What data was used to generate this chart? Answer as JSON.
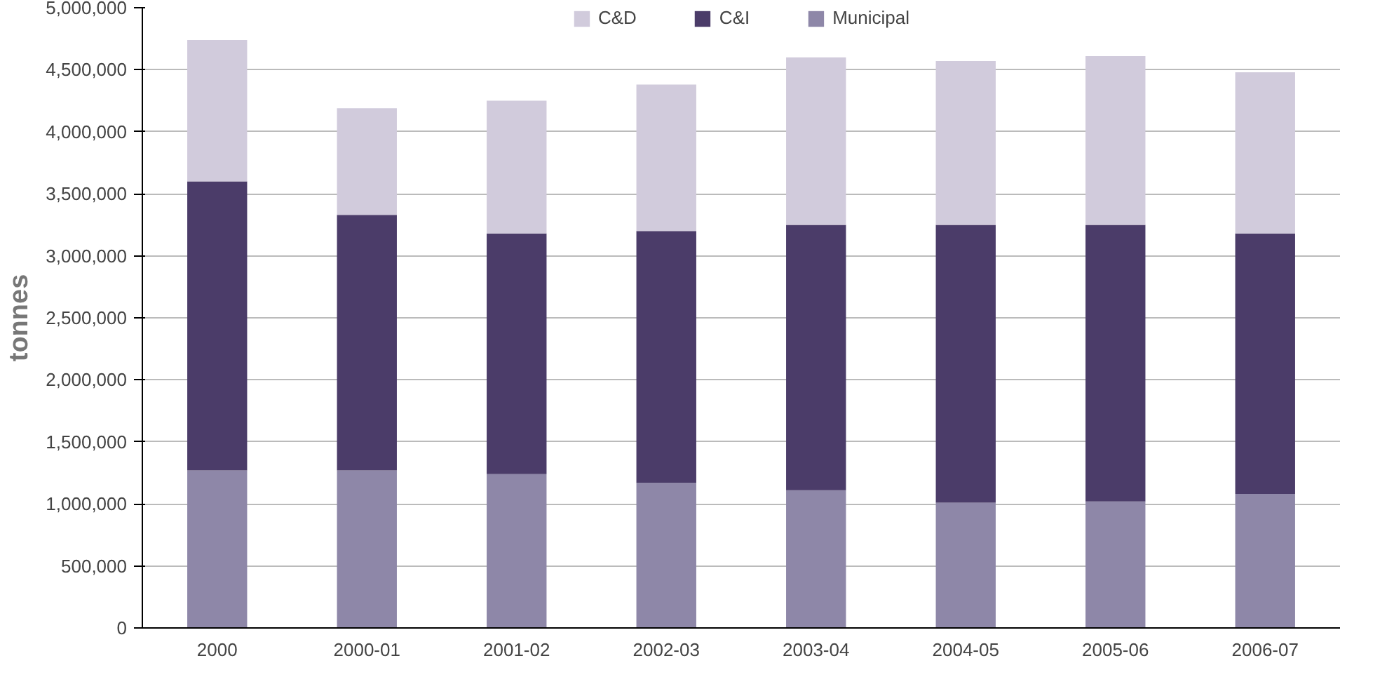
{
  "chart_data": {
    "type": "bar",
    "stacked": true,
    "ylabel": "tonnes",
    "categories": [
      "2000",
      "2000-01",
      "2001-02",
      "2002-03",
      "2003-04",
      "2004-05",
      "2005-06",
      "2006-07"
    ],
    "series": [
      {
        "name": "Municipal",
        "color": "#8e87a8",
        "values": [
          1270000,
          1270000,
          1240000,
          1170000,
          1110000,
          1010000,
          1020000,
          1080000
        ]
      },
      {
        "name": "C&I",
        "color": "#4b3c69",
        "values": [
          2330000,
          2060000,
          1940000,
          2030000,
          2140000,
          2240000,
          2230000,
          2100000
        ]
      },
      {
        "name": "C&D",
        "color": "#d1cbdc",
        "values": [
          1140000,
          860000,
          1070000,
          1180000,
          1350000,
          1320000,
          1360000,
          1300000
        ]
      }
    ],
    "ylim": [
      0,
      5000000
    ],
    "yticks": [
      0,
      {
        "value": 500000,
        "label": "500,000"
      },
      {
        "value": 1000000,
        "label": "1,000,000"
      },
      {
        "value": 1500000,
        "label": "1,500,000"
      },
      {
        "value": 2000000,
        "label": "2,000,000"
      },
      {
        "value": 2500000,
        "label": "2,500,000"
      },
      {
        "value": 3000000,
        "label": "3,000,000"
      },
      {
        "value": 3500000,
        "label": "3,500,000"
      },
      {
        "value": 4000000,
        "label": "4,000,000"
      },
      {
        "value": 4500000,
        "label": "4,500,000"
      },
      {
        "value": 5000000,
        "label": "5,000,000"
      }
    ],
    "grid": "y",
    "legend": "top"
  }
}
